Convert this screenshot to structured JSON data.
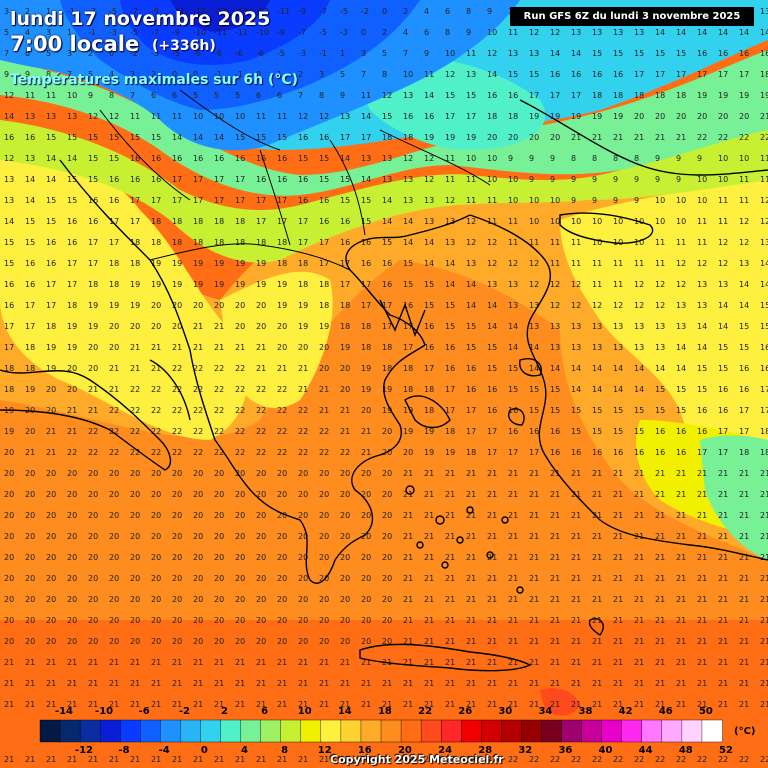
{
  "header": {
    "date": "lundi 17 novembre 2025",
    "time": "7:00 locale",
    "offset": "(+336h)",
    "subtitle": "Températures maximales sur 6h (°C)",
    "run": "Run GFS 6Z du lundi 3 novembre 2025"
  },
  "legend": {
    "unit": "(°C)",
    "top_labels": [
      "-14",
      "-10",
      "-6",
      "-2",
      "2",
      "6",
      "10",
      "14",
      "18",
      "22",
      "26",
      "30",
      "34",
      "38",
      "42",
      "46",
      "50"
    ],
    "bottom_labels": [
      "-12",
      "-8",
      "-4",
      "0",
      "4",
      "8",
      "12",
      "16",
      "20",
      "24",
      "28",
      "32",
      "36",
      "40",
      "44",
      "48",
      "52"
    ],
    "colors": [
      "#041a45",
      "#05286e",
      "#0a2ea0",
      "#0a1ed6",
      "#0a3cff",
      "#1060ff",
      "#1e90ff",
      "#28b4f5",
      "#32d2ee",
      "#50f0c8",
      "#78f096",
      "#a0f064",
      "#c8f032",
      "#f0f000",
      "#fff040",
      "#ffd232",
      "#ffaa28",
      "#ff8c1e",
      "#ff6e14",
      "#ff4a1e",
      "#ff2828",
      "#f00000",
      "#d20000",
      "#b40000",
      "#960000",
      "#78001e",
      "#a0006e",
      "#c8009a",
      "#e600c8",
      "#ff28f0",
      "#ff78ff",
      "#ffaaff",
      "#ffd2ff",
      "#ffffff"
    ]
  },
  "copyright": "Copyright 2025 Meteociel.fr"
}
